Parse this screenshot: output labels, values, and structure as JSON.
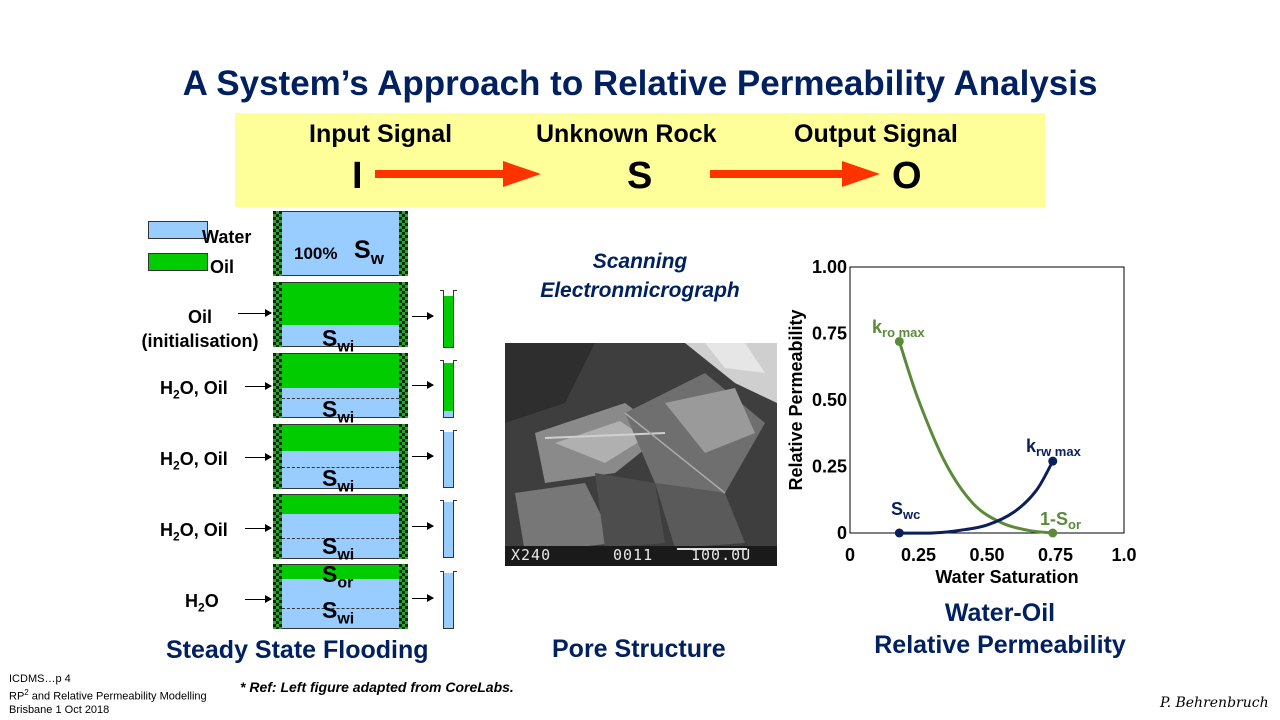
{
  "title": "A System’s Approach to Relative Permeability Analysis",
  "banner": {
    "input_label": "Input Signal",
    "input_letter": "I",
    "rock_label": "Unknown Rock",
    "rock_letter": "S",
    "output_label": "Output Signal",
    "output_letter": "O"
  },
  "legend": {
    "water": "Water",
    "oil": "Oil"
  },
  "flood": {
    "full_core_pct": "100%",
    "full_core_sym": "S",
    "full_core_sub": "w",
    "swi_main": "S",
    "swi_sub": "wi",
    "sor_main": "S",
    "sor_sub": "or",
    "labels": {
      "oil_init_1": "Oil",
      "oil_init_2": "(initialisation)",
      "h2o_oil_prefix": "H",
      "h2o_oil_sub": "2",
      "h2o_oil_suffix": "O,  Oil",
      "h2o_suffix": "O"
    },
    "caption": "Steady State Flooding"
  },
  "sem": {
    "title_1": "Scanning",
    "title_2": "Electronmicrograph",
    "overlay_mag": "X240",
    "overlay_id": "0011",
    "overlay_scale": "100.0U",
    "caption": "Pore Structure"
  },
  "chart_data": {
    "type": "line",
    "xlabel": "Water Saturation",
    "ylabel": "Relative Permeability",
    "xlim": [
      0,
      1.0
    ],
    "ylim": [
      0,
      1.0
    ],
    "x_ticks": [
      "0",
      "0.25",
      "0.50",
      "0.75",
      "1.0"
    ],
    "y_ticks": [
      "0",
      "0.25",
      "0.50",
      "0.75",
      "1.00"
    ],
    "series": [
      {
        "color": "#5a8a3a",
        "x": [
          0.18,
          0.25,
          0.35,
          0.45,
          0.55,
          0.65,
          0.74
        ],
        "y": [
          0.72,
          0.5,
          0.26,
          0.11,
          0.04,
          0.01,
          0.0
        ]
      },
      {
        "color": "#0a1f5c",
        "x": [
          0.18,
          0.3,
          0.4,
          0.5,
          0.6,
          0.68,
          0.74
        ],
        "y": [
          0.0,
          0.0,
          0.01,
          0.03,
          0.08,
          0.16,
          0.27
        ]
      }
    ],
    "annotations": {
      "kro_main": "k",
      "kro_sub": "ro max",
      "krw_main": "k",
      "krw_sub": "rw max",
      "swc_main": "S",
      "swc_sub": "wc",
      "sor_prefix": "1-S",
      "sor_sub": "or"
    },
    "caption_1": "Water-Oil",
    "caption_2": "Relative Permeability"
  },
  "footer": {
    "line1": "ICDMS…p 4",
    "line2_pre": "RP",
    "line2_sup": "2",
    "line2_post": " and Relative Permeability Modelling",
    "line3": "Brisbane 1 Oct 2018",
    "ref": "* Ref: Left figure adapted from CoreLabs.",
    "author": "P. Behrenbruch"
  }
}
